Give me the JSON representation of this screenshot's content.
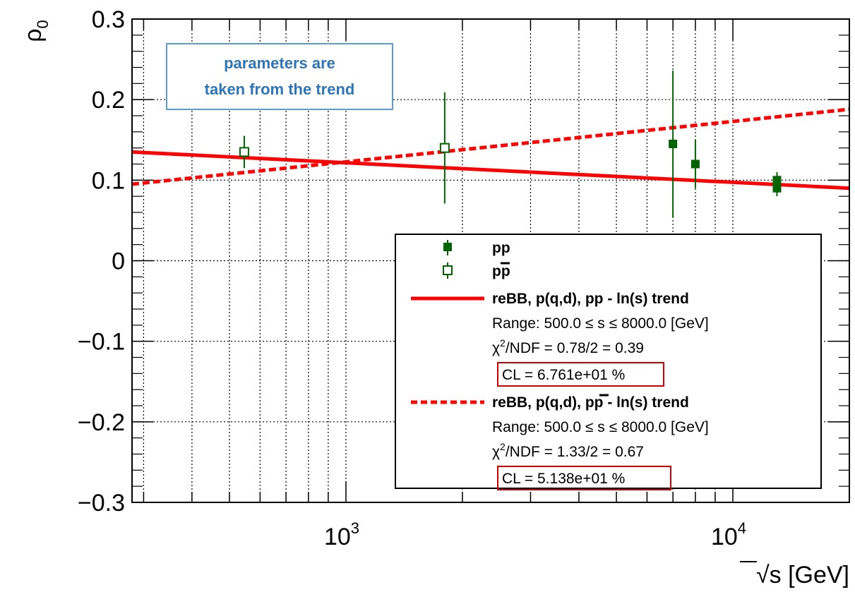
{
  "chart_data": {
    "type": "scatter",
    "x_scale": "log",
    "xlim": [
      280,
      20000
    ],
    "ylim": [
      -0.3,
      0.3
    ],
    "grid": true,
    "xlabel_prefix": "√",
    "xlabel": "s [GeV]",
    "ylabel": "ρ",
    "ylabel_sub": "0",
    "y_ticks": [
      {
        "value": 0.3,
        "label": "0.3"
      },
      {
        "value": 0.2,
        "label": "0.2"
      },
      {
        "value": 0.1,
        "label": "0.1"
      },
      {
        "value": 0,
        "label": "0"
      },
      {
        "value": -0.1,
        "label": "−0.1"
      },
      {
        "value": -0.2,
        "label": "−0.2"
      },
      {
        "value": -0.3,
        "label": "−0.3"
      }
    ],
    "x_ticks": [
      {
        "value": 1000,
        "base": "10",
        "exp": "3"
      },
      {
        "value": 10000,
        "base": "10",
        "exp": "4"
      }
    ],
    "series": [
      {
        "name": "pp",
        "marker": "filled-square",
        "color": "#006400",
        "points": [
          {
            "x": 7000,
            "y": 0.145,
            "err": 0.091
          },
          {
            "x": 8000,
            "y": 0.12,
            "err": 0.03
          },
          {
            "x": 13000,
            "y": 0.1,
            "err": 0.01
          },
          {
            "x": 13000,
            "y": 0.09,
            "err": 0.01
          }
        ]
      },
      {
        "name": "pp̄",
        "marker": "open-square",
        "color": "#006400",
        "points": [
          {
            "x": 546,
            "y": 0.135,
            "err": 0.02
          },
          {
            "x": 1800,
            "y": 0.14,
            "err": 0.069
          }
        ]
      }
    ],
    "lines": [
      {
        "name": "reBB, p(q,d), pp - ln(s) trend",
        "style": "solid",
        "color": "#ff0000",
        "x": [
          280,
          20000
        ],
        "y": [
          0.135,
          0.09
        ]
      },
      {
        "name": "reBB, p(q,d), pp̄ - ln(s) trend",
        "style": "dashed",
        "color": "#ff0000",
        "x": [
          280,
          20000
        ],
        "y": [
          0.095,
          0.188
        ]
      }
    ]
  },
  "legend": {
    "pp_label": "pp",
    "ppbar_p": "p",
    "ppbar_pbar": "p",
    "trend1_name": "reBB, p(q,d), pp - ln(s) trend",
    "trend1_range_pre": "Range: 500.0 ≤ ",
    "trend1_range_s": "s",
    "trend1_range_post": " ≤ 8000.0 [GeV]",
    "trend1_chi2_sym": "χ",
    "trend1_chi2_sup": "2",
    "trend1_chi2_rest": "/NDF = 0.78/2 = 0.39",
    "trend1_cl": "CL = 6.761e+01 %",
    "trend2_name_a": "reBB, p(q,d), p",
    "trend2_name_pbar": "p",
    "trend2_name_b": " - ln(s) trend",
    "trend2_range_pre": "Range: 500.0 ≤ ",
    "trend2_range_s": "s",
    "trend2_range_post": " ≤ 8000.0 [GeV]",
    "trend2_chi2_sym": "χ",
    "trend2_chi2_sup": "2",
    "trend2_chi2_rest": "/NDF = 1.33/2 = 0.67",
    "trend2_cl": "CL = 5.138e+01 %"
  },
  "note": {
    "line1": "parameters are",
    "line2": "taken from the trend"
  },
  "colors": {
    "data_marker": "#006400",
    "trend_line": "#ff0000",
    "cl_box": "#d00000",
    "note_border": "#5b9bd5",
    "note_text": "#2e75b6"
  }
}
